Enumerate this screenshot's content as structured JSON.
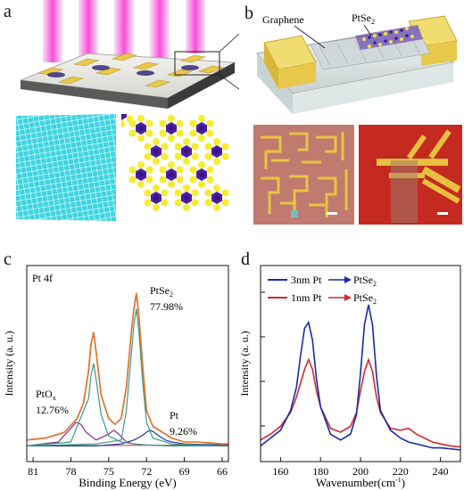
{
  "panels": {
    "a": {
      "letter": "a"
    },
    "b": {
      "letter": "b",
      "label_graphene": "Graphene",
      "label_ptse2": "PtSe",
      "label_ptse2_sub": "2"
    },
    "c": {
      "letter": "c"
    },
    "d": {
      "letter": "d"
    }
  },
  "chart_data": [
    {
      "type": "line",
      "panel": "c",
      "corner_label": "Pt 4f",
      "xlabel": "Binding Energy (eV)",
      "ylabel": "Intensity (a. u.)",
      "xlim": [
        81.5,
        65.5
      ],
      "x_reversed": true,
      "x_ticks": [
        "81",
        "78",
        "75",
        "72",
        "69",
        "66"
      ],
      "annotations": [
        {
          "name": "PtSe",
          "sub": "2",
          "value": "77.98%"
        },
        {
          "name": "PtO",
          "sub": "x",
          "value": "12.76%"
        },
        {
          "name": "Pt",
          "sub": "",
          "value": "9.26%"
        }
      ],
      "colors": {
        "data": "#d44a1a",
        "fit": "#e8a030",
        "ptse2": "#3a9a8a",
        "ptox": "#8a2a8a",
        "pt": "#203a9a",
        "bg": "#d23030"
      },
      "series": [
        {
          "key": "data",
          "x": [
            81.5,
            80,
            78.5,
            77.5,
            77,
            76.6,
            76.4,
            76.2,
            76,
            75.6,
            75,
            74.5,
            74,
            73.6,
            73.2,
            73,
            72.8,
            72.6,
            72.3,
            72,
            71.5,
            71,
            70.5,
            70,
            69,
            68,
            67,
            66,
            65.5
          ],
          "values": [
            0.11,
            0.12,
            0.15,
            0.22,
            0.3,
            0.46,
            0.6,
            0.66,
            0.56,
            0.34,
            0.22,
            0.19,
            0.22,
            0.38,
            0.66,
            0.78,
            0.86,
            0.74,
            0.48,
            0.26,
            0.18,
            0.16,
            0.14,
            0.12,
            0.1,
            0.1,
            0.095,
            0.09,
            0.09
          ]
        },
        {
          "key": "ptse2",
          "x": [
            81.5,
            78,
            76.6,
            76.4,
            76.2,
            76,
            75.6,
            75,
            74,
            73,
            72,
            70,
            66,
            65.5
          ],
          "values": [
            0.08,
            0.1,
            0.32,
            0.44,
            0.5,
            0.42,
            0.24,
            0.13,
            0.1,
            0.09,
            0.085,
            0.08,
            0.08,
            0.08
          ]
        },
        {
          "key": "ptse2_b",
          "x": [
            81.5,
            76,
            74,
            73.6,
            73.2,
            73,
            72.8,
            72.6,
            72.3,
            72,
            71.5,
            70,
            66,
            65.5
          ],
          "values": [
            0.08,
            0.09,
            0.11,
            0.26,
            0.55,
            0.7,
            0.78,
            0.66,
            0.4,
            0.2,
            0.12,
            0.09,
            0.08,
            0.08
          ]
        },
        {
          "key": "ptox",
          "x": [
            81.5,
            79,
            78,
            77.6,
            77.2,
            76.8,
            76,
            75,
            74.6,
            74.2,
            73.6,
            73,
            72,
            70,
            65.5
          ],
          "values": [
            0.08,
            0.1,
            0.17,
            0.2,
            0.19,
            0.15,
            0.11,
            0.14,
            0.16,
            0.14,
            0.1,
            0.09,
            0.085,
            0.08,
            0.08
          ]
        },
        {
          "key": "pt",
          "x": [
            81.5,
            76,
            74,
            73,
            72.4,
            72,
            71.7,
            71.4,
            71,
            70.5,
            70,
            69,
            66,
            65.5
          ],
          "values": [
            0.08,
            0.08,
            0.09,
            0.11,
            0.13,
            0.15,
            0.16,
            0.15,
            0.13,
            0.11,
            0.1,
            0.09,
            0.085,
            0.085
          ]
        }
      ]
    },
    {
      "type": "line",
      "panel": "d",
      "xlabel": "Wavenumber(cm",
      "xlabel_sup": "-1",
      "xlabel_end": ")",
      "ylabel": "Intensity (a. u.)",
      "xlim": [
        150,
        250
      ],
      "x_ticks": [
        160,
        180,
        200,
        220,
        240
      ],
      "series": [
        {
          "name": "3nm Pt",
          "name_target": "PtSe",
          "name_target_sub": "2",
          "color": "#1a2ba8",
          "x": [
            150,
            155,
            160,
            165,
            168,
            170,
            172,
            174,
            176,
            178,
            180,
            185,
            190,
            195,
            198,
            200,
            202,
            204,
            206,
            208,
            210,
            215,
            220,
            224,
            228,
            232,
            236,
            240,
            245,
            250
          ],
          "values": [
            0.08,
            0.12,
            0.16,
            0.26,
            0.38,
            0.54,
            0.68,
            0.71,
            0.62,
            0.42,
            0.28,
            0.14,
            0.11,
            0.14,
            0.24,
            0.45,
            0.7,
            0.8,
            0.7,
            0.44,
            0.26,
            0.16,
            0.12,
            0.1,
            0.09,
            0.08,
            0.07,
            0.07,
            0.065,
            0.06
          ]
        },
        {
          "name": "1nm Pt",
          "name_target": "PtSe",
          "name_target_sub": "2",
          "color": "#d42a2a",
          "x": [
            150,
            155,
            160,
            165,
            168,
            170,
            172,
            174,
            176,
            178,
            180,
            185,
            190,
            195,
            198,
            200,
            202,
            204,
            206,
            208,
            210,
            215,
            220,
            224,
            228,
            232,
            236,
            240,
            245,
            250
          ],
          "values": [
            0.11,
            0.14,
            0.18,
            0.25,
            0.33,
            0.4,
            0.47,
            0.52,
            0.47,
            0.36,
            0.28,
            0.17,
            0.15,
            0.18,
            0.25,
            0.36,
            0.46,
            0.52,
            0.46,
            0.33,
            0.25,
            0.17,
            0.16,
            0.17,
            0.14,
            0.12,
            0.1,
            0.09,
            0.08,
            0.075
          ]
        }
      ]
    }
  ]
}
